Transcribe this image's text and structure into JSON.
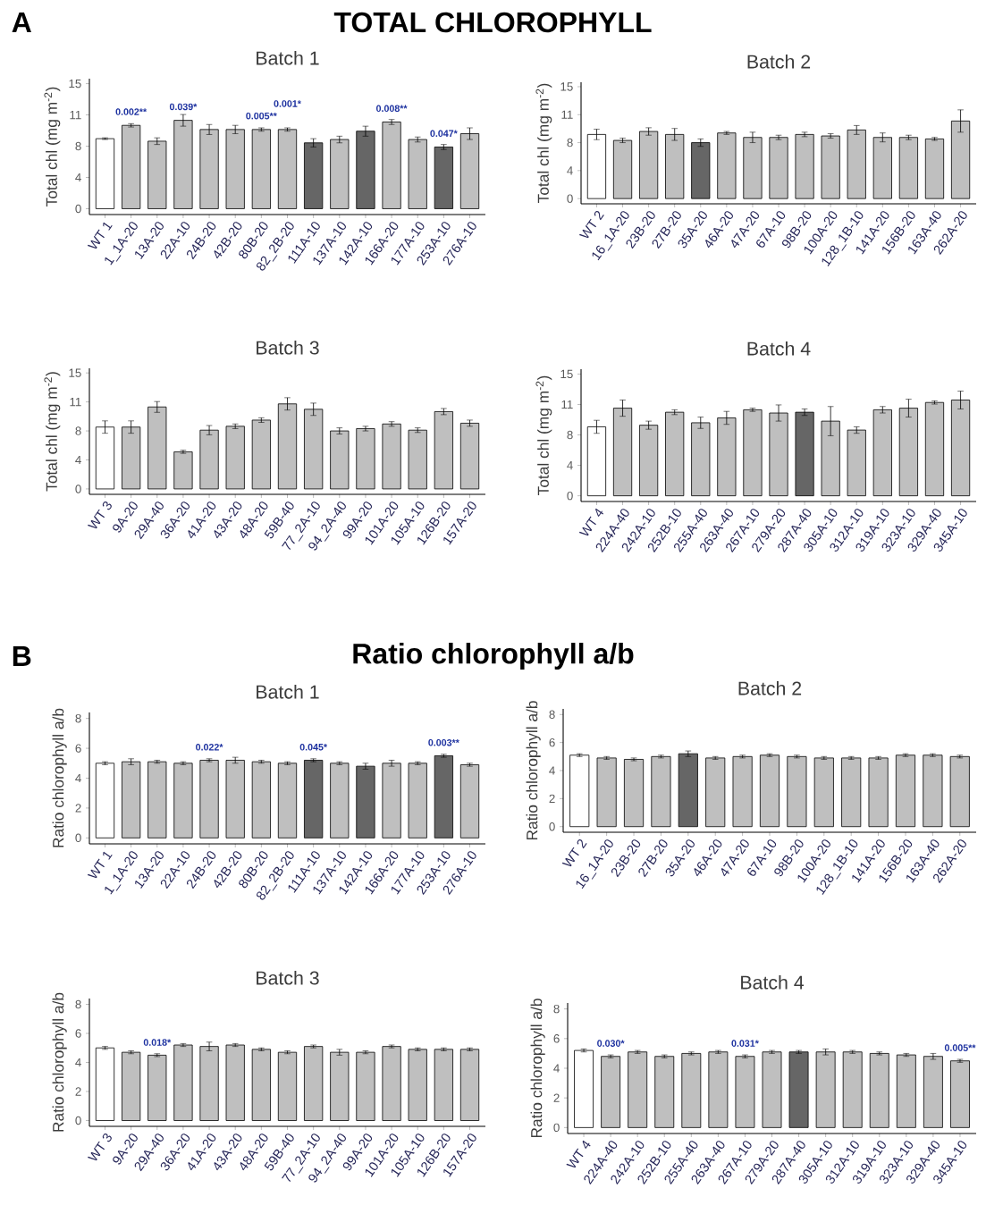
{
  "chart_data": [
    {
      "type": "bar",
      "title": "Batch 1",
      "ylabel": "Total chl (mg m$^{-2}$)",
      "annotations": [
        "A",
        "TOTAL CHLOROPHYLL",
        {
          "text": "0.002**",
          "x": "1_1A-20",
          "y": 10.0
        },
        {
          "text": "0.039*",
          "x": "22A-10",
          "y": 10.6
        },
        {
          "text": "0.005**",
          "x": "80B-20",
          "y": 9.5
        },
        {
          "text": "0.001*",
          "x": "82_2B-20",
          "y": 9.5
        },
        {
          "text": "0.008**",
          "x": "166A-20",
          "y": 10.4
        },
        {
          "text": "0.047*",
          "x": "253A-10",
          "y": 7.4
        }
      ],
      "categories": [
        "WT 1",
        "1_1A-20",
        "13A-20",
        "22A-10",
        "24B-20",
        "42B-20",
        "80B-20",
        "82_2B-20",
        "111A-10",
        "137A-10",
        "142A-10",
        "166A-20",
        "177A-10",
        "253A-10",
        "276A-10"
      ],
      "values": [
        8.4,
        10.0,
        8.1,
        10.6,
        9.5,
        9.5,
        9.5,
        9.5,
        7.9,
        8.3,
        9.3,
        10.4,
        8.3,
        7.4,
        9.0
      ],
      "errors": [
        0.1,
        0.2,
        0.4,
        0.7,
        0.6,
        0.5,
        0.2,
        0.2,
        0.5,
        0.4,
        0.6,
        0.3,
        0.3,
        0.3,
        0.7
      ],
      "colors": [
        "#ffffff",
        "#bfbfbf",
        "#bfbfbf",
        "#bfbfbf",
        "#bfbfbf",
        "#bfbfbf",
        "#bfbfbf",
        "#bfbfbf",
        "#666666",
        "#bfbfbf",
        "#666666",
        "#bfbfbf",
        "#bfbfbf",
        "#666666",
        "#bfbfbf"
      ],
      "ylim": [
        -0.7,
        15.6
      ],
      "yticks": [
        0,
        {
          "value": 3.75,
          "label": "4"
        },
        {
          "value": 7.5,
          "label": "8"
        },
        {
          "value": 11.25,
          "label": "11"
        },
        15
      ]
    },
    {
      "type": "bar",
      "title": "Batch 2",
      "ylabel": "Total chl (mg m$^{-2}$)",
      "categories": [
        "WT 2",
        "16_1A-20",
        "23B-20",
        "27B-20",
        "35A-20",
        "46A-20",
        "47A-20",
        "67A-10",
        "98B-20",
        "100A-20",
        "128_1B-10",
        "141A-20",
        "156B-20",
        "163A-40",
        "262A-20"
      ],
      "values": [
        8.6,
        7.8,
        9.0,
        8.6,
        7.5,
        8.8,
        8.2,
        8.2,
        8.6,
        8.4,
        9.2,
        8.2,
        8.2,
        8.0,
        10.4
      ],
      "errors": [
        0.7,
        0.3,
        0.5,
        0.8,
        0.5,
        0.2,
        0.7,
        0.3,
        0.3,
        0.3,
        0.6,
        0.6,
        0.3,
        0.2,
        1.5
      ],
      "colors": [
        "#ffffff",
        "#bfbfbf",
        "#bfbfbf",
        "#bfbfbf",
        "#666666",
        "#bfbfbf",
        "#bfbfbf",
        "#bfbfbf",
        "#bfbfbf",
        "#bfbfbf",
        "#bfbfbf",
        "#bfbfbf",
        "#bfbfbf",
        "#bfbfbf",
        "#bfbfbf"
      ],
      "ylim": [
        -0.7,
        15.6
      ],
      "yticks": [
        0,
        {
          "value": 3.75,
          "label": "4"
        },
        {
          "value": 7.5,
          "label": "8"
        },
        {
          "value": 11.25,
          "label": "11"
        },
        15
      ]
    },
    {
      "type": "bar",
      "title": "Batch 3",
      "ylabel": "Total chl (mg m$^{-2}$)",
      "categories": [
        "WT 3",
        "9A-20",
        "29A-40",
        "36A-20",
        "41A-20",
        "43A-20",
        "48A-20",
        "59B-40",
        "77_2A-10",
        "94_2A-40",
        "99A-20",
        "101A-20",
        "105A-10",
        "126B-20",
        "157A-20"
      ],
      "values": [
        8.0,
        8.0,
        10.6,
        4.8,
        7.6,
        8.1,
        8.9,
        11.0,
        10.3,
        7.5,
        7.8,
        8.4,
        7.6,
        10.0,
        8.5
      ],
      "errors": [
        0.8,
        0.8,
        0.7,
        0.2,
        0.6,
        0.3,
        0.3,
        0.8,
        0.8,
        0.4,
        0.3,
        0.3,
        0.3,
        0.4,
        0.4
      ],
      "colors": [
        "#ffffff",
        "#bfbfbf",
        "#bfbfbf",
        "#bfbfbf",
        "#bfbfbf",
        "#bfbfbf",
        "#bfbfbf",
        "#bfbfbf",
        "#bfbfbf",
        "#bfbfbf",
        "#bfbfbf",
        "#bfbfbf",
        "#bfbfbf",
        "#bfbfbf",
        "#bfbfbf"
      ],
      "ylim": [
        -0.7,
        15.6
      ],
      "yticks": [
        0,
        {
          "value": 3.75,
          "label": "4"
        },
        {
          "value": 7.5,
          "label": "8"
        },
        {
          "value": 11.25,
          "label": "11"
        },
        15
      ]
    },
    {
      "type": "bar",
      "title": "Batch 4",
      "ylabel": "Total chl (mg m$^{-2}$)",
      "categories": [
        "WT 4",
        "224A-40",
        "242A-10",
        "252B-10",
        "255A-40",
        "263A-40",
        "267A-10",
        "279A-20",
        "287A-40",
        "305A-10",
        "312A-10",
        "319A-10",
        "323A-10",
        "329A-40",
        "345A-10"
      ],
      "values": [
        8.5,
        10.8,
        8.7,
        10.3,
        9.0,
        9.6,
        10.6,
        10.2,
        10.3,
        9.2,
        8.1,
        10.6,
        10.8,
        11.5,
        11.8
      ],
      "errors": [
        0.8,
        1.0,
        0.5,
        0.3,
        0.7,
        0.8,
        0.2,
        1.0,
        0.4,
        1.8,
        0.4,
        0.4,
        1.1,
        0.2,
        1.1
      ],
      "colors": [
        "#ffffff",
        "#bfbfbf",
        "#bfbfbf",
        "#bfbfbf",
        "#bfbfbf",
        "#bfbfbf",
        "#bfbfbf",
        "#bfbfbf",
        "#666666",
        "#bfbfbf",
        "#bfbfbf",
        "#bfbfbf",
        "#bfbfbf",
        "#bfbfbf",
        "#bfbfbf"
      ],
      "ylim": [
        -0.7,
        15.6
      ],
      "yticks": [
        0,
        {
          "value": 3.75,
          "label": "4"
        },
        {
          "value": 7.5,
          "label": "8"
        },
        {
          "value": 11.25,
          "label": "11"
        },
        15
      ]
    },
    {
      "type": "bar",
      "title": "Batch 1",
      "ylabel": "Ratio chlorophyll a/b",
      "annotations": [
        "B",
        "Ratio chlorophyll a/b",
        {
          "text": "0.022*",
          "x": "24B-20",
          "y": 5.2
        },
        {
          "text": "0.045*",
          "x": "111A-10",
          "y": 5.2
        },
        {
          "text": "0.003**",
          "x": "253A-10",
          "y": 5.5
        }
      ],
      "categories": [
        "WT 1",
        "1_1A-20",
        "13A-20",
        "22A-10",
        "24B-20",
        "42B-20",
        "80B-20",
        "82_2B-20",
        "111A-10",
        "137A-10",
        "142A-10",
        "166A-20",
        "177A-10",
        "253A-10",
        "276A-10"
      ],
      "values": [
        5.0,
        5.1,
        5.1,
        5.0,
        5.2,
        5.2,
        5.1,
        5.0,
        5.2,
        5.0,
        4.8,
        5.0,
        5.0,
        5.5,
        4.9
      ],
      "errors": [
        0.1,
        0.2,
        0.1,
        0.1,
        0.1,
        0.2,
        0.1,
        0.1,
        0.1,
        0.1,
        0.2,
        0.2,
        0.1,
        0.1,
        0.1
      ],
      "colors": [
        "#ffffff",
        "#bfbfbf",
        "#bfbfbf",
        "#bfbfbf",
        "#bfbfbf",
        "#bfbfbf",
        "#bfbfbf",
        "#bfbfbf",
        "#666666",
        "#bfbfbf",
        "#666666",
        "#bfbfbf",
        "#bfbfbf",
        "#666666",
        "#bfbfbf"
      ],
      "ylim": [
        -0.4,
        8.4
      ],
      "yticks": [
        0,
        2,
        4,
        6,
        8
      ]
    },
    {
      "type": "bar",
      "title": "Batch 2",
      "ylabel": "Ratio chlorophyll a/b",
      "categories": [
        "WT 2",
        "16_1A-20",
        "23B-20",
        "27B-20",
        "35A-20",
        "46A-20",
        "47A-20",
        "67A-10",
        "98B-20",
        "100A-20",
        "128_1B-10",
        "141A-20",
        "156B-20",
        "163A-40",
        "262A-20"
      ],
      "values": [
        5.1,
        4.9,
        4.8,
        5.0,
        5.2,
        4.9,
        5.0,
        5.1,
        5.0,
        4.9,
        4.9,
        4.9,
        5.1,
        5.1,
        5.0
      ],
      "errors": [
        0.1,
        0.1,
        0.1,
        0.1,
        0.2,
        0.1,
        0.1,
        0.1,
        0.1,
        0.1,
        0.1,
        0.1,
        0.1,
        0.1,
        0.1
      ],
      "colors": [
        "#ffffff",
        "#bfbfbf",
        "#bfbfbf",
        "#bfbfbf",
        "#666666",
        "#bfbfbf",
        "#bfbfbf",
        "#bfbfbf",
        "#bfbfbf",
        "#bfbfbf",
        "#bfbfbf",
        "#bfbfbf",
        "#bfbfbf",
        "#bfbfbf",
        "#bfbfbf"
      ],
      "ylim": [
        -0.4,
        8.4
      ],
      "yticks": [
        0,
        2,
        4,
        6,
        8
      ]
    },
    {
      "type": "bar",
      "title": "Batch 3",
      "ylabel": "Ratio chlorophyll a/b",
      "annotations": [
        {
          "text": "0.018*",
          "x": "29A-40",
          "y": 4.5
        }
      ],
      "categories": [
        "WT 3",
        "9A-20",
        "29A-40",
        "36A-20",
        "41A-20",
        "43A-20",
        "48A-20",
        "59B-40",
        "77_2A-10",
        "94_2A-40",
        "99A-20",
        "101A-20",
        "105A-10",
        "126B-20",
        "157A-20"
      ],
      "values": [
        5.0,
        4.7,
        4.5,
        5.2,
        5.1,
        5.2,
        4.9,
        4.7,
        5.1,
        4.7,
        4.7,
        5.1,
        4.9,
        4.9,
        4.9
      ],
      "errors": [
        0.1,
        0.1,
        0.1,
        0.1,
        0.3,
        0.1,
        0.1,
        0.1,
        0.1,
        0.2,
        0.1,
        0.1,
        0.1,
        0.1,
        0.1
      ],
      "colors": [
        "#ffffff",
        "#bfbfbf",
        "#bfbfbf",
        "#bfbfbf",
        "#bfbfbf",
        "#bfbfbf",
        "#bfbfbf",
        "#bfbfbf",
        "#bfbfbf",
        "#bfbfbf",
        "#bfbfbf",
        "#bfbfbf",
        "#bfbfbf",
        "#bfbfbf",
        "#bfbfbf"
      ],
      "ylim": [
        -0.4,
        8.4
      ],
      "yticks": [
        0,
        2,
        4,
        6,
        8
      ]
    },
    {
      "type": "bar",
      "title": "Batch 4",
      "ylabel": "Ratio chlorophyll a/b",
      "annotations": [
        {
          "text": "0.030*",
          "x": "224A-40",
          "y": 4.8
        },
        {
          "text": "0.031*",
          "x": "267A-10",
          "y": 4.8
        },
        {
          "text": "0.005**",
          "x": "345A-10",
          "y": 4.5
        }
      ],
      "categories": [
        "WT 4",
        "224A-40",
        "242A-10",
        "252B-10",
        "255A-40",
        "263A-40",
        "267A-10",
        "279A-20",
        "287A-40",
        "305A-10",
        "312A-10",
        "319A-10",
        "323A-10",
        "329A-40",
        "345A-10"
      ],
      "values": [
        5.2,
        4.8,
        5.1,
        4.8,
        5.0,
        5.1,
        4.8,
        5.1,
        5.1,
        5.1,
        5.1,
        5.0,
        4.9,
        4.8,
        4.5
      ],
      "errors": [
        0.1,
        0.1,
        0.1,
        0.1,
        0.1,
        0.1,
        0.1,
        0.1,
        0.1,
        0.2,
        0.1,
        0.1,
        0.1,
        0.2,
        0.1
      ],
      "colors": [
        "#ffffff",
        "#bfbfbf",
        "#bfbfbf",
        "#bfbfbf",
        "#bfbfbf",
        "#bfbfbf",
        "#bfbfbf",
        "#bfbfbf",
        "#666666",
        "#bfbfbf",
        "#bfbfbf",
        "#bfbfbf",
        "#bfbfbf",
        "#bfbfbf",
        "#bfbfbf"
      ],
      "ylim": [
        -0.4,
        8.4
      ],
      "yticks": [
        0,
        2,
        4,
        6,
        8
      ]
    }
  ]
}
